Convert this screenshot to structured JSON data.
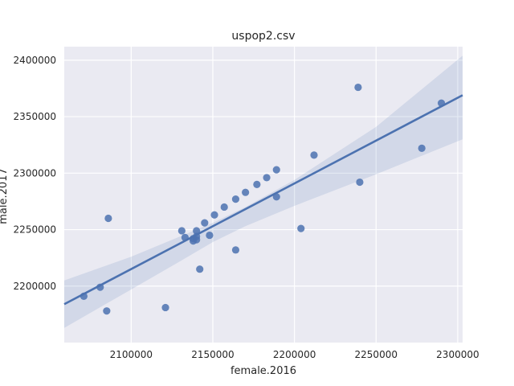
{
  "chart_data": {
    "type": "scatter",
    "title": "uspop2.csv",
    "xlabel": "female.2016",
    "ylabel": "male.2017",
    "xlim": [
      2059000,
      2303000
    ],
    "ylim": [
      2150000,
      2412000
    ],
    "x_ticks": [
      2100000,
      2150000,
      2200000,
      2250000,
      2300000
    ],
    "y_ticks": [
      2200000,
      2250000,
      2300000,
      2350000,
      2400000
    ],
    "x_tick_labels": [
      "2100000",
      "2150000",
      "2200000",
      "2250000",
      "2300000"
    ],
    "y_tick_labels": [
      "2200000",
      "2250000",
      "2300000",
      "2350000",
      "2400000"
    ],
    "grid": true,
    "point_color": "#4c72b0",
    "background_color": "#eaeaf2",
    "grid_color": "#ffffff",
    "points": [
      {
        "x": 2071000,
        "y": 2191000
      },
      {
        "x": 2081000,
        "y": 2199000
      },
      {
        "x": 2085000,
        "y": 2178000
      },
      {
        "x": 2086000,
        "y": 2260000
      },
      {
        "x": 2121000,
        "y": 2181000
      },
      {
        "x": 2131000,
        "y": 2249000
      },
      {
        "x": 2133000,
        "y": 2243000
      },
      {
        "x": 2138000,
        "y": 2242000
      },
      {
        "x": 2138000,
        "y": 2240000
      },
      {
        "x": 2140000,
        "y": 2241000
      },
      {
        "x": 2140000,
        "y": 2244000
      },
      {
        "x": 2140000,
        "y": 2249000
      },
      {
        "x": 2142000,
        "y": 2215000
      },
      {
        "x": 2145000,
        "y": 2256000
      },
      {
        "x": 2148000,
        "y": 2245000
      },
      {
        "x": 2151000,
        "y": 2263000
      },
      {
        "x": 2157000,
        "y": 2270000
      },
      {
        "x": 2164000,
        "y": 2232000
      },
      {
        "x": 2164000,
        "y": 2277000
      },
      {
        "x": 2170000,
        "y": 2283000
      },
      {
        "x": 2177000,
        "y": 2290000
      },
      {
        "x": 2183000,
        "y": 2296000
      },
      {
        "x": 2189000,
        "y": 2303000
      },
      {
        "x": 2189000,
        "y": 2279000
      },
      {
        "x": 2204000,
        "y": 2251000
      },
      {
        "x": 2212000,
        "y": 2316000
      },
      {
        "x": 2239000,
        "y": 2376000
      },
      {
        "x": 2240000,
        "y": 2292000
      },
      {
        "x": 2278000,
        "y": 2322000
      },
      {
        "x": 2290000,
        "y": 2362000
      }
    ],
    "regression_line": {
      "x": [
        2059000,
        2303000
      ],
      "y": [
        2184000,
        2369000
      ]
    },
    "confidence_band": {
      "x": [
        2059000,
        2100000,
        2130000,
        2150000,
        2170000,
        2200000,
        2250000,
        2303000
      ],
      "lower": [
        2163000,
        2197000,
        2222000,
        2239000,
        2253000,
        2271000,
        2299000,
        2330000
      ],
      "upper": [
        2205000,
        2226000,
        2244000,
        2256000,
        2270000,
        2294000,
        2341000,
        2404000
      ]
    }
  }
}
